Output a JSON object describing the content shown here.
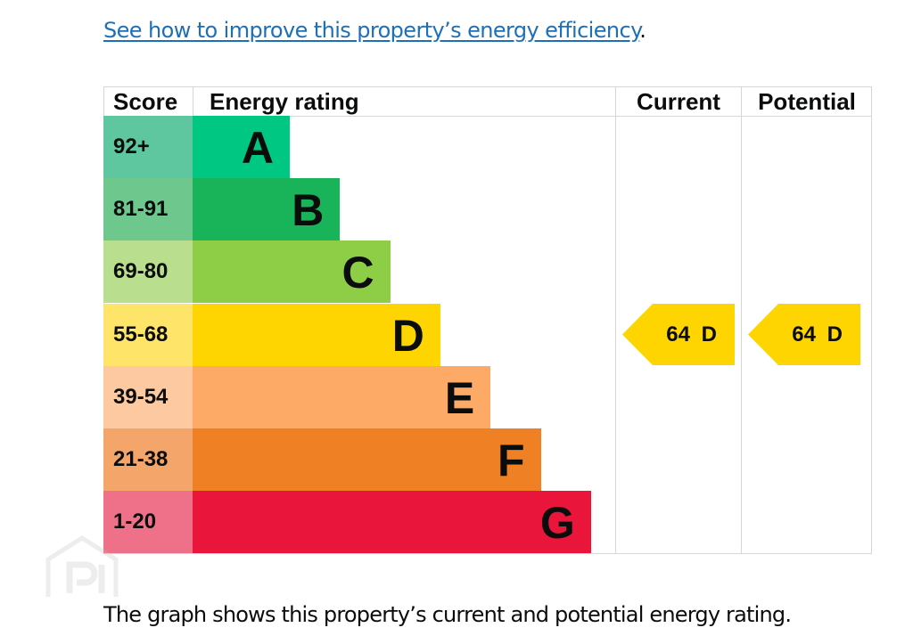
{
  "link_text": "See how to improve this property’s energy efficiency",
  "link_suffix": ".",
  "headers": {
    "score": "Score",
    "rating": "Energy rating",
    "current": "Current",
    "potential": "Potential"
  },
  "chart_data": {
    "type": "bar",
    "categories": [
      "A",
      "B",
      "C",
      "D",
      "E",
      "F",
      "G"
    ],
    "score_ranges": [
      "92+",
      "81-91",
      "69-80",
      "55-68",
      "39-54",
      "21-38",
      "1-20"
    ],
    "colors": [
      "#00c781",
      "#19b459",
      "#8dce46",
      "#ffd500",
      "#fcaa65",
      "#ef8023",
      "#e9153b"
    ],
    "score_colors": [
      "#5fc7a0",
      "#6ec78c",
      "#b9de8e",
      "#ffe46a",
      "#fdc9a0",
      "#f3a56a",
      "#ef7089"
    ],
    "current": {
      "score": "64",
      "band": "D"
    },
    "potential": {
      "score": "64",
      "band": "D"
    }
  },
  "current_label": "64 D",
  "potential_label": "64 D",
  "footer": "The graph shows this property’s current and potential energy rating."
}
